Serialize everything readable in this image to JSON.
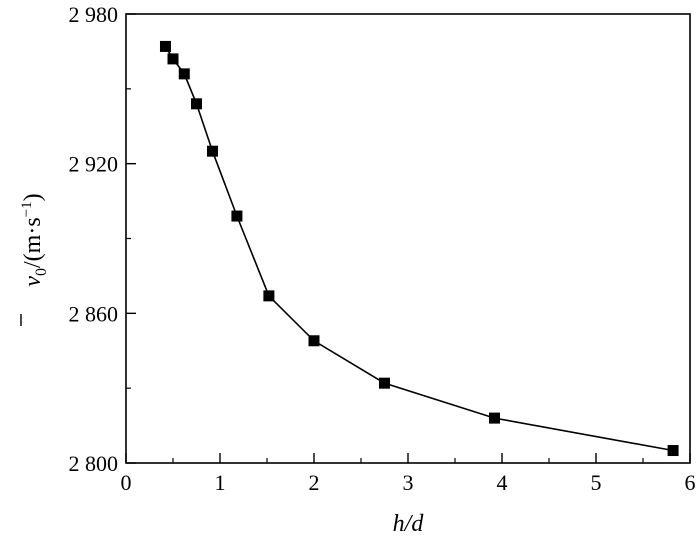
{
  "chart_data": {
    "type": "line",
    "title": "",
    "xlabel": "h/d",
    "ylabel": "v̄₀/(m·s⁻¹)",
    "ylabel_parts": {
      "symbol": "v",
      "subscript": "0",
      "unit_prefix": "/(m·s",
      "unit_exp": "−1",
      "unit_suffix": ")"
    },
    "xlim": [
      0,
      6
    ],
    "ylim": [
      2800,
      2980
    ],
    "x_ticks": [
      0,
      1,
      2,
      3,
      4,
      5,
      6
    ],
    "x_tick_labels": [
      "0",
      "1",
      "2",
      "3",
      "4",
      "5",
      "6"
    ],
    "y_ticks": [
      2800,
      2860,
      2920,
      2980
    ],
    "y_tick_labels": [
      "2 800",
      "2 860",
      "2 920",
      "2 980"
    ],
    "grid": false,
    "legend": "none",
    "marker": "square",
    "color": "#000000",
    "series": [
      {
        "x": [
          0.42,
          0.5,
          0.62,
          0.75,
          0.92,
          1.18,
          1.52,
          2.0,
          2.75,
          3.92,
          5.82
        ],
        "y": [
          2967,
          2962,
          2956,
          2944,
          2925,
          2899,
          2867,
          2849,
          2832,
          2818,
          2805
        ]
      }
    ]
  }
}
